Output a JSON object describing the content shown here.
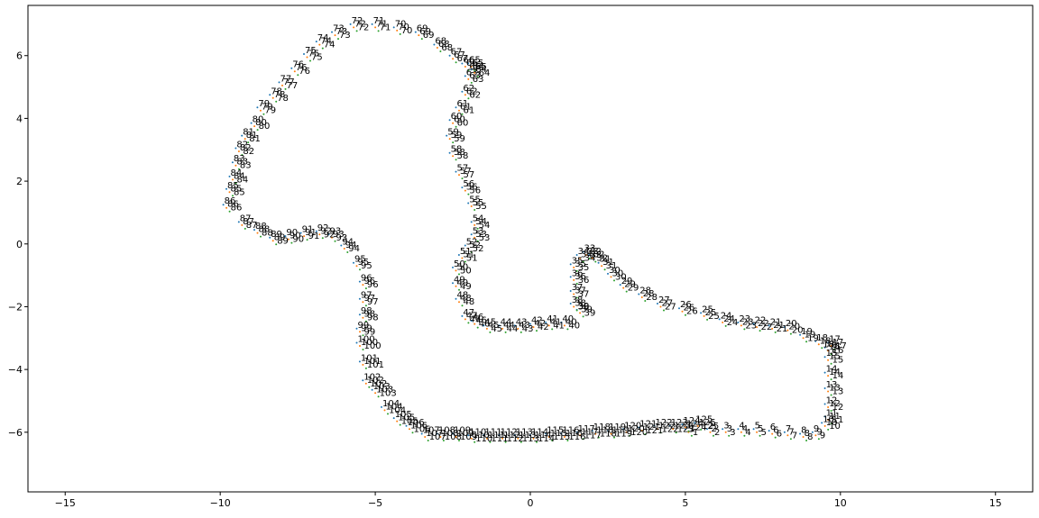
{
  "chart_data": {
    "type": "scatter",
    "title": "",
    "xlabel": "",
    "ylabel": "",
    "xlim": [
      -16.2,
      16.2
    ],
    "ylim": [
      -7.9,
      7.6
    ],
    "xticks": [
      -15,
      -10,
      -5,
      0,
      5,
      10,
      15
    ],
    "yticks": [
      -6,
      -4,
      -2,
      0,
      2,
      4,
      6
    ],
    "xtick_labels": [
      "−15",
      "−10",
      "−5",
      "0",
      "5",
      "10",
      "15"
    ],
    "ytick_labels": [
      "−6",
      "−4",
      "−2",
      "0",
      "2",
      "4",
      "6"
    ],
    "grid": false,
    "legend": "none",
    "colors": [
      "#1f77b4",
      "#ff7f0e",
      "#2ca02c"
    ],
    "series": [
      {
        "labels": [
          1,
          2,
          3,
          4,
          5,
          6,
          7,
          8,
          9,
          10,
          11,
          12,
          13,
          14,
          15,
          16,
          17,
          18,
          19,
          20,
          21,
          22,
          23,
          24,
          25,
          26,
          27,
          28,
          29,
          30,
          31,
          32,
          33,
          34,
          35,
          36,
          37,
          38,
          39,
          40,
          41,
          42,
          43,
          44,
          45,
          46,
          47,
          48,
          49,
          50,
          51,
          52,
          53,
          54,
          55,
          56,
          57,
          58,
          59,
          60,
          61,
          62,
          63,
          64,
          65,
          66,
          67,
          68,
          69,
          70,
          71,
          72,
          73,
          74,
          75,
          76,
          77,
          78,
          79,
          80,
          81,
          82,
          83,
          84,
          85,
          86,
          87,
          88,
          89,
          90,
          91,
          92,
          93,
          94,
          95,
          96,
          97,
          98,
          99,
          100,
          101,
          102,
          103,
          104,
          105,
          106,
          107,
          108,
          109,
          110,
          111,
          112,
          113,
          114,
          115,
          116,
          117,
          118,
          119,
          120,
          121,
          122,
          123,
          124,
          125
        ],
        "x": [
          5.0,
          5.7,
          6.2,
          6.7,
          7.2,
          7.7,
          8.2,
          8.7,
          9.1,
          9.4,
          9.5,
          9.5,
          9.5,
          9.5,
          9.5,
          9.5,
          9.6,
          9.2,
          8.7,
          8.2,
          7.7,
          7.2,
          6.7,
          6.1,
          5.5,
          4.8,
          4.1,
          3.5,
          2.9,
          2.5,
          2.2,
          1.9,
          1.7,
          1.5,
          1.3,
          1.3,
          1.3,
          1.3,
          1.5,
          1.0,
          0.5,
          0.0,
          -0.5,
          -1.0,
          -1.5,
          -1.9,
          -2.2,
          -2.4,
          -2.5,
          -2.5,
          -2.3,
          -2.1,
          -1.9,
          -1.9,
          -2.0,
          -2.2,
          -2.4,
          -2.6,
          -2.7,
          -2.6,
          -2.4,
          -2.2,
          -2.1,
          -1.9,
          -2.0,
          -2.2,
          -2.6,
          -3.1,
          -3.7,
          -4.4,
          -5.1,
          -5.8,
          -6.4,
          -6.9,
          -7.3,
          -7.7,
          -8.1,
          -8.4,
          -8.8,
          -9.0,
          -9.3,
          -9.5,
          -9.6,
          -9.7,
          -9.8,
          -9.9,
          -9.4,
          -8.9,
          -8.4,
          -7.9,
          -7.4,
          -6.9,
          -6.5,
          -6.1,
          -5.7,
          -5.5,
          -5.5,
          -5.5,
          -5.6,
          -5.6,
          -5.5,
          -5.4,
          -5.1,
          -4.8,
          -4.4,
          -4.0,
          -3.5,
          -3.0,
          -2.5,
          -2.0,
          -1.5,
          -1.0,
          -0.5,
          0.0,
          0.5,
          1.0,
          1.5,
          2.0,
          2.5,
          3.0,
          3.5,
          4.0,
          4.5,
          4.9,
          5.3
        ],
        "y": [
          -5.9,
          -5.9,
          -5.9,
          -5.9,
          -5.9,
          -5.95,
          -6.0,
          -6.05,
          -6.0,
          -5.7,
          -5.5,
          -5.1,
          -4.6,
          -4.1,
          -3.6,
          -3.3,
          -3.15,
          -3.1,
          -2.9,
          -2.65,
          -2.6,
          -2.55,
          -2.5,
          -2.4,
          -2.2,
          -2.05,
          -1.9,
          -1.6,
          -1.3,
          -0.95,
          -0.6,
          -0.35,
          -0.25,
          -0.35,
          -0.65,
          -1.05,
          -1.5,
          -1.9,
          -2.1,
          -2.5,
          -2.5,
          -2.55,
          -2.6,
          -2.6,
          -2.6,
          -2.45,
          -2.3,
          -1.75,
          -1.25,
          -0.75,
          -0.35,
          -0.05,
          0.3,
          0.7,
          1.3,
          1.8,
          2.3,
          2.9,
          3.45,
          3.95,
          4.35,
          4.85,
          5.35,
          5.55,
          5.75,
          5.75,
          6.0,
          6.35,
          6.75,
          6.9,
          7.0,
          7.0,
          6.75,
          6.45,
          6.05,
          5.6,
          5.15,
          4.75,
          4.35,
          3.85,
          3.45,
          3.05,
          2.6,
          2.15,
          1.75,
          1.25,
          0.7,
          0.45,
          0.2,
          0.25,
          0.35,
          0.4,
          0.3,
          -0.05,
          -0.6,
          -1.2,
          -1.75,
          -2.25,
          -2.7,
          -3.15,
          -3.75,
          -4.35,
          -4.65,
          -5.2,
          -5.55,
          -5.8,
          -6.05,
          -6.05,
          -6.05,
          -6.1,
          -6.1,
          -6.1,
          -6.1,
          -6.1,
          -6.05,
          -6.05,
          -6.0,
          -5.95,
          -5.95,
          -5.9,
          -5.85,
          -5.8,
          -5.8,
          -5.75,
          -5.7
        ]
      },
      {
        "labels": [
          1,
          2,
          3,
          4,
          5,
          6,
          7,
          8,
          9,
          10,
          11,
          12,
          13,
          14,
          15,
          16,
          17,
          18,
          19,
          20,
          21,
          22,
          23,
          24,
          25,
          26,
          27,
          28,
          29,
          30,
          31,
          32,
          33,
          34,
          35,
          36,
          37,
          38,
          39,
          40,
          41,
          42,
          43,
          44,
          45,
          46,
          47,
          48,
          49,
          50,
          51,
          52,
          53,
          54,
          55,
          56,
          57,
          58,
          59,
          60,
          61,
          62,
          63,
          64,
          65,
          66,
          67,
          68,
          69,
          70,
          71,
          72,
          73,
          74,
          75,
          76,
          77,
          78,
          79,
          80,
          81,
          82,
          83,
          84,
          85,
          86,
          87,
          88,
          89,
          90,
          91,
          92,
          93,
          94,
          95,
          96,
          97,
          98,
          99,
          100,
          101,
          102,
          103,
          104,
          105,
          106,
          107,
          108,
          109,
          110,
          111,
          112,
          113,
          114,
          115,
          116,
          117,
          118,
          119,
          120,
          121,
          122,
          123,
          124,
          125
        ],
        "x": [
          5.0,
          5.7,
          6.2,
          6.7,
          7.2,
          7.7,
          8.2,
          8.7,
          9.1,
          9.4,
          9.5,
          9.5,
          9.5,
          9.5,
          9.5,
          9.5,
          9.6,
          9.2,
          8.7,
          8.2,
          7.7,
          7.2,
          6.7,
          6.1,
          5.5,
          4.8,
          4.1,
          3.5,
          2.9,
          2.5,
          2.2,
          1.9,
          1.7,
          1.5,
          1.3,
          1.3,
          1.3,
          1.3,
          1.5,
          1.0,
          0.5,
          0.0,
          -0.5,
          -1.0,
          -1.5,
          -1.9,
          -2.2,
          -2.4,
          -2.5,
          -2.5,
          -2.3,
          -2.1,
          -1.9,
          -1.9,
          -2.0,
          -2.2,
          -2.4,
          -2.6,
          -2.7,
          -2.6,
          -2.4,
          -2.2,
          -2.1,
          -1.9,
          -2.0,
          -2.2,
          -2.6,
          -3.1,
          -3.7,
          -4.4,
          -5.1,
          -5.8,
          -6.4,
          -6.9,
          -7.3,
          -7.7,
          -8.1,
          -8.4,
          -8.8,
          -9.0,
          -9.3,
          -9.5,
          -9.6,
          -9.7,
          -9.8,
          -9.9,
          -9.4,
          -8.9,
          -8.4,
          -7.9,
          -7.4,
          -6.9,
          -6.5,
          -6.1,
          -5.7,
          -5.5,
          -5.5,
          -5.5,
          -5.6,
          -5.6,
          -5.5,
          -5.4,
          -5.1,
          -4.8,
          -4.4,
          -4.0,
          -3.5,
          -3.0,
          -2.5,
          -2.0,
          -1.5,
          -1.0,
          -0.5,
          0.0,
          0.5,
          1.0,
          1.5,
          2.0,
          2.5,
          3.0,
          3.5,
          4.0,
          4.5,
          4.9,
          5.3
        ],
        "y": [
          -5.9,
          -5.9,
          -5.9,
          -5.9,
          -5.9,
          -5.95,
          -6.0,
          -6.05,
          -6.0,
          -5.7,
          -5.5,
          -5.1,
          -4.6,
          -4.1,
          -3.6,
          -3.3,
          -3.15,
          -3.1,
          -2.9,
          -2.65,
          -2.6,
          -2.55,
          -2.5,
          -2.4,
          -2.2,
          -2.05,
          -1.9,
          -1.6,
          -1.3,
          -0.95,
          -0.6,
          -0.35,
          -0.25,
          -0.35,
          -0.65,
          -1.05,
          -1.5,
          -1.9,
          -2.1,
          -2.5,
          -2.5,
          -2.55,
          -2.6,
          -2.6,
          -2.6,
          -2.45,
          -2.3,
          -1.75,
          -1.25,
          -0.75,
          -0.35,
          -0.05,
          0.3,
          0.7,
          1.3,
          1.8,
          2.3,
          2.9,
          3.45,
          3.95,
          4.35,
          4.85,
          5.35,
          5.55,
          5.75,
          5.75,
          6.0,
          6.35,
          6.75,
          6.9,
          7.0,
          7.0,
          6.75,
          6.45,
          6.05,
          5.6,
          5.15,
          4.75,
          4.35,
          3.85,
          3.45,
          3.05,
          2.6,
          2.15,
          1.75,
          1.25,
          0.7,
          0.45,
          0.2,
          0.25,
          0.35,
          0.4,
          0.3,
          -0.05,
          -0.6,
          -1.2,
          -1.75,
          -2.25,
          -2.7,
          -3.15,
          -3.75,
          -4.35,
          -4.65,
          -5.2,
          -5.55,
          -5.8,
          -6.05,
          -6.05,
          -6.05,
          -6.1,
          -6.1,
          -6.1,
          -6.1,
          -6.1,
          -6.05,
          -6.05,
          -6.0,
          -5.95,
          -5.95,
          -5.9,
          -5.85,
          -5.8,
          -5.8,
          -5.75,
          -5.7
        ]
      },
      {
        "labels": [
          1,
          2,
          3,
          4,
          5,
          6,
          7,
          8,
          9,
          10,
          11,
          12,
          13,
          14,
          15,
          16,
          17,
          18,
          19,
          20,
          21,
          22,
          23,
          24,
          25,
          26,
          27,
          28,
          29,
          30,
          31,
          32,
          33,
          34,
          35,
          36,
          37,
          38,
          39,
          40,
          41,
          42,
          43,
          44,
          45,
          46,
          47,
          48,
          49,
          50,
          51,
          52,
          53,
          54,
          55,
          56,
          57,
          58,
          59,
          60,
          61,
          62,
          63,
          64,
          65,
          66,
          67,
          68,
          69,
          70,
          71,
          72,
          73,
          74,
          75,
          76,
          77,
          78,
          79,
          80,
          81,
          82,
          83,
          84,
          85,
          86,
          87,
          88,
          89,
          90,
          91,
          92,
          93,
          94,
          95,
          96,
          97,
          98,
          99,
          100,
          101,
          102,
          103,
          104,
          105,
          106,
          107,
          108,
          109,
          110,
          111,
          112,
          113,
          114,
          115,
          116,
          117,
          118,
          119,
          120,
          121,
          122,
          123,
          124,
          125
        ],
        "x": [
          5.0,
          5.7,
          6.2,
          6.7,
          7.2,
          7.7,
          8.2,
          8.7,
          9.1,
          9.4,
          9.5,
          9.5,
          9.5,
          9.5,
          9.5,
          9.5,
          9.6,
          9.2,
          8.7,
          8.2,
          7.7,
          7.2,
          6.7,
          6.1,
          5.5,
          4.8,
          4.1,
          3.5,
          2.9,
          2.5,
          2.2,
          1.9,
          1.7,
          1.5,
          1.3,
          1.3,
          1.3,
          1.3,
          1.5,
          1.0,
          0.5,
          0.0,
          -0.5,
          -1.0,
          -1.5,
          -1.9,
          -2.2,
          -2.4,
          -2.5,
          -2.5,
          -2.3,
          -2.1,
          -1.9,
          -1.9,
          -2.0,
          -2.2,
          -2.4,
          -2.6,
          -2.7,
          -2.6,
          -2.4,
          -2.2,
          -2.1,
          -1.9,
          -2.0,
          -2.2,
          -2.6,
          -3.1,
          -3.7,
          -4.4,
          -5.1,
          -5.8,
          -6.4,
          -6.9,
          -7.3,
          -7.7,
          -8.1,
          -8.4,
          -8.8,
          -9.0,
          -9.3,
          -9.5,
          -9.6,
          -9.7,
          -9.8,
          -9.9,
          -9.4,
          -8.9,
          -8.4,
          -7.9,
          -7.4,
          -6.9,
          -6.5,
          -6.1,
          -5.7,
          -5.5,
          -5.5,
          -5.5,
          -5.6,
          -5.6,
          -5.5,
          -5.4,
          -5.1,
          -4.8,
          -4.4,
          -4.0,
          -3.5,
          -3.0,
          -2.5,
          -2.0,
          -1.5,
          -1.0,
          -0.5,
          0.0,
          0.5,
          1.0,
          1.5,
          2.0,
          2.5,
          3.0,
          3.5,
          4.0,
          4.5,
          4.9,
          5.3
        ],
        "y": [
          -5.9,
          -5.9,
          -5.9,
          -5.9,
          -5.9,
          -5.95,
          -6.0,
          -6.05,
          -6.0,
          -5.7,
          -5.5,
          -5.1,
          -4.6,
          -4.1,
          -3.6,
          -3.3,
          -3.15,
          -3.1,
          -2.9,
          -2.65,
          -2.6,
          -2.55,
          -2.5,
          -2.4,
          -2.2,
          -2.05,
          -1.9,
          -1.6,
          -1.3,
          -0.95,
          -0.6,
          -0.35,
          -0.25,
          -0.35,
          -0.65,
          -1.05,
          -1.5,
          -1.9,
          -2.1,
          -2.5,
          -2.5,
          -2.55,
          -2.6,
          -2.6,
          -2.6,
          -2.45,
          -2.3,
          -1.75,
          -1.25,
          -0.75,
          -0.35,
          -0.05,
          0.3,
          0.7,
          1.3,
          1.8,
          2.3,
          2.9,
          3.45,
          3.95,
          4.35,
          4.85,
          5.35,
          5.55,
          5.75,
          5.75,
          6.0,
          6.35,
          6.75,
          6.9,
          7.0,
          7.0,
          6.75,
          6.45,
          6.05,
          5.6,
          5.15,
          4.75,
          4.35,
          3.85,
          3.45,
          3.05,
          2.6,
          2.15,
          1.75,
          1.25,
          0.7,
          0.45,
          0.2,
          0.25,
          0.35,
          0.4,
          0.3,
          -0.05,
          -0.6,
          -1.2,
          -1.75,
          -2.25,
          -2.7,
          -3.15,
          -3.75,
          -4.35,
          -4.65,
          -5.2,
          -5.55,
          -5.8,
          -6.05,
          -6.05,
          -6.05,
          -6.1,
          -6.1,
          -6.1,
          -6.1,
          -6.1,
          -6.05,
          -6.05,
          -6.0,
          -5.95,
          -5.95,
          -5.9,
          -5.85,
          -5.8,
          -5.8,
          -5.75,
          -5.7
        ]
      }
    ]
  }
}
